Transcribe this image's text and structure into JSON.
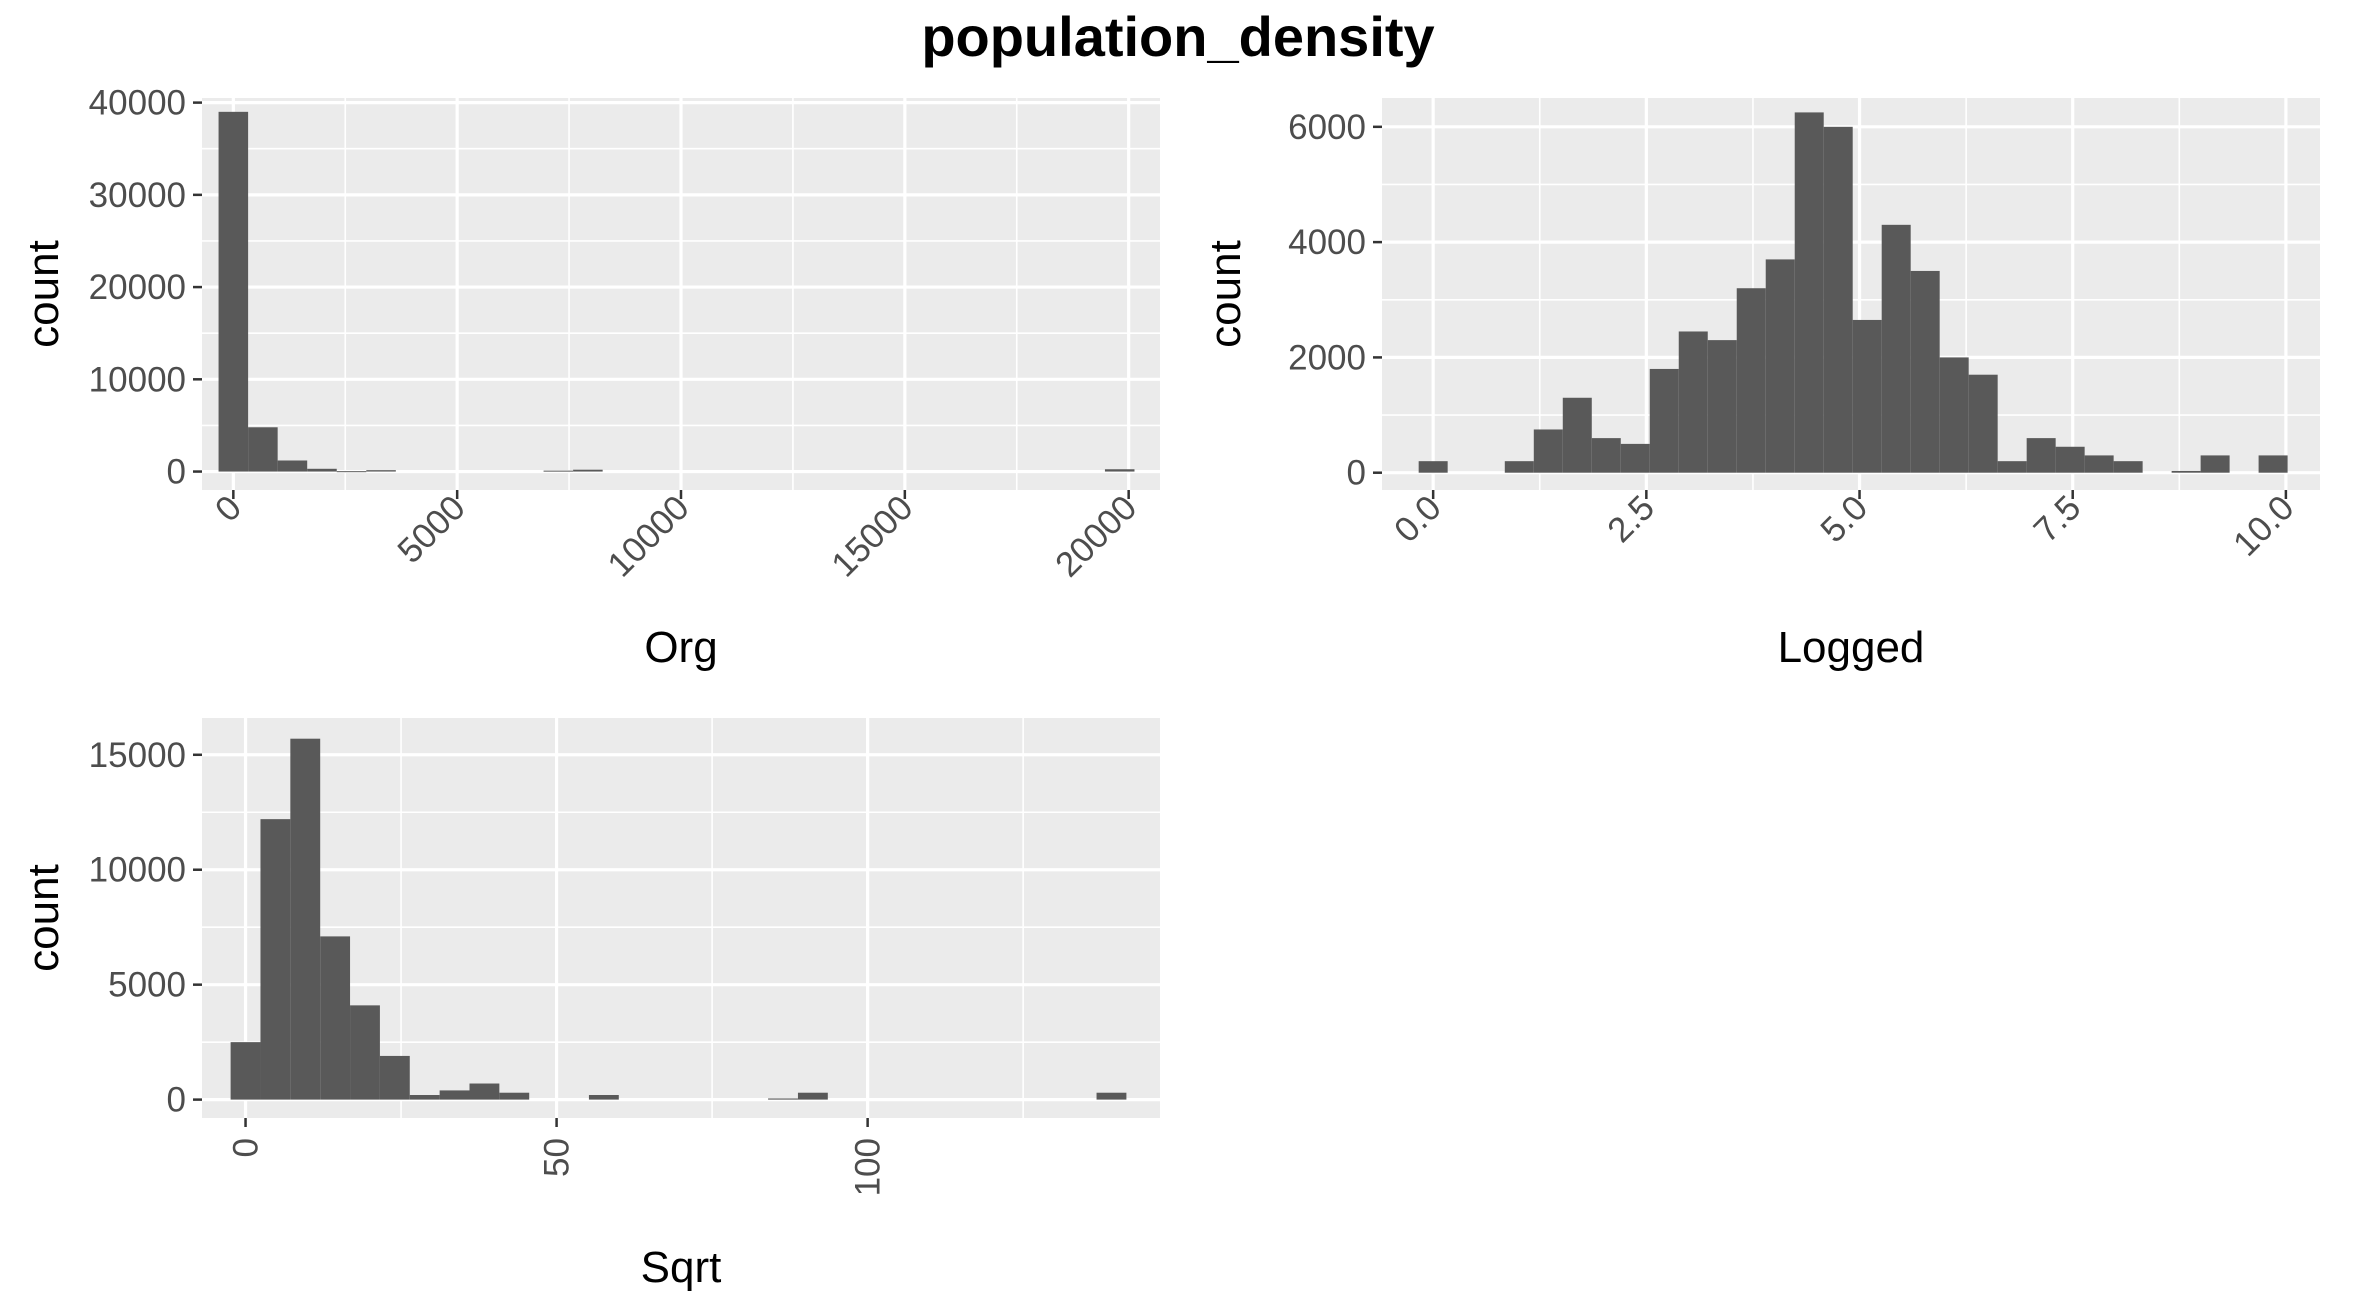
{
  "title": "population_density",
  "colors": {
    "panel_background": "#ebebeb",
    "grid_major": "#ffffff",
    "bar_fill": "#595959",
    "tick_text": "#4d4d4d",
    "tick_mark": "#333333"
  },
  "chart_data": [
    {
      "type": "bar",
      "kind": "histogram",
      "xlabel": "Org",
      "ylabel": "count",
      "xlim": [
        -700,
        20700
      ],
      "ylim": [
        -2000,
        40500
      ],
      "xticks": [
        0,
        5000,
        10000,
        15000,
        20000
      ],
      "xtick_labels": [
        "0",
        "5000",
        "10000",
        "15000",
        "20000"
      ],
      "yticks": [
        0,
        10000,
        20000,
        30000,
        40000
      ],
      "ytick_labels": [
        "0",
        "10000",
        "20000",
        "30000",
        "40000"
      ],
      "xtick_rotation": 45,
      "grid": true,
      "bars": [
        {
          "x0": -330,
          "x1": 330,
          "count": 39000
        },
        {
          "x0": 330,
          "x1": 990,
          "count": 4800
        },
        {
          "x0": 990,
          "x1": 1650,
          "count": 1200
        },
        {
          "x0": 1650,
          "x1": 2310,
          "count": 300
        },
        {
          "x0": 2310,
          "x1": 2970,
          "count": 40
        },
        {
          "x0": 2970,
          "x1": 3630,
          "count": 150
        },
        {
          "x0": 6930,
          "x1": 7590,
          "count": 100
        },
        {
          "x0": 7590,
          "x1": 8250,
          "count": 200
        },
        {
          "x0": 19470,
          "x1": 20130,
          "count": 250
        }
      ]
    },
    {
      "type": "bar",
      "kind": "histogram",
      "xlabel": "Logged",
      "ylabel": "count",
      "xlim": [
        -0.6,
        10.4
      ],
      "ylim": [
        -300,
        6500
      ],
      "xticks": [
        0,
        2.5,
        5,
        7.5,
        10
      ],
      "xtick_labels": [
        "0.0",
        "2.5",
        "5.0",
        "7.5",
        "10.0"
      ],
      "yticks": [
        0,
        2000,
        4000,
        6000
      ],
      "ytick_labels": [
        "0",
        "2000",
        "4000",
        "6000"
      ],
      "xtick_rotation": 45,
      "grid": true,
      "bars": [
        {
          "x0": -0.17,
          "x1": 0.17,
          "count": 200
        },
        {
          "x0": 0.84,
          "x1": 1.18,
          "count": 200
        },
        {
          "x0": 1.18,
          "x1": 1.52,
          "count": 750
        },
        {
          "x0": 1.52,
          "x1": 1.86,
          "count": 1300
        },
        {
          "x0": 1.86,
          "x1": 2.2,
          "count": 600
        },
        {
          "x0": 2.2,
          "x1": 2.54,
          "count": 500
        },
        {
          "x0": 2.54,
          "x1": 2.88,
          "count": 1800
        },
        {
          "x0": 2.88,
          "x1": 3.22,
          "count": 2450
        },
        {
          "x0": 3.22,
          "x1": 3.56,
          "count": 2300
        },
        {
          "x0": 3.56,
          "x1": 3.9,
          "count": 3200
        },
        {
          "x0": 3.9,
          "x1": 4.24,
          "count": 3700
        },
        {
          "x0": 4.24,
          "x1": 4.58,
          "count": 6250
        },
        {
          "x0": 4.58,
          "x1": 4.92,
          "count": 6000
        },
        {
          "x0": 4.92,
          "x1": 5.26,
          "count": 2650
        },
        {
          "x0": 5.26,
          "x1": 5.6,
          "count": 4300
        },
        {
          "x0": 5.6,
          "x1": 5.94,
          "count": 3500
        },
        {
          "x0": 5.94,
          "x1": 6.28,
          "count": 2000
        },
        {
          "x0": 6.28,
          "x1": 6.62,
          "count": 1700
        },
        {
          "x0": 6.62,
          "x1": 6.96,
          "count": 200
        },
        {
          "x0": 6.96,
          "x1": 7.3,
          "count": 600
        },
        {
          "x0": 7.3,
          "x1": 7.64,
          "count": 450
        },
        {
          "x0": 7.64,
          "x1": 7.98,
          "count": 300
        },
        {
          "x0": 7.98,
          "x1": 8.32,
          "count": 200
        },
        {
          "x0": 8.66,
          "x1": 9.0,
          "count": 30
        },
        {
          "x0": 9.0,
          "x1": 9.34,
          "count": 300
        },
        {
          "x0": 9.68,
          "x1": 10.02,
          "count": 300
        }
      ]
    },
    {
      "type": "bar",
      "kind": "histogram",
      "xlabel": "Sqrt",
      "ylabel": "count",
      "xlim": [
        -7,
        147
      ],
      "ylim": [
        -800,
        16600
      ],
      "xticks": [
        0,
        50,
        100
      ],
      "xtick_labels": [
        "0",
        "50",
        "100"
      ],
      "yticks": [
        0,
        5000,
        10000,
        15000
      ],
      "ytick_labels": [
        "0",
        "5000",
        "10000",
        "15000"
      ],
      "xtick_rotation": 90,
      "grid": true,
      "bars": [
        {
          "x0": -2.4,
          "x1": 2.4,
          "count": 2500
        },
        {
          "x0": 2.4,
          "x1": 7.2,
          "count": 12200
        },
        {
          "x0": 7.2,
          "x1": 12.0,
          "count": 15700
        },
        {
          "x0": 12.0,
          "x1": 16.8,
          "count": 7100
        },
        {
          "x0": 16.8,
          "x1": 21.6,
          "count": 4100
        },
        {
          "x0": 21.6,
          "x1": 26.4,
          "count": 1900
        },
        {
          "x0": 26.4,
          "x1": 31.2,
          "count": 200
        },
        {
          "x0": 31.2,
          "x1": 36.0,
          "count": 400
        },
        {
          "x0": 36.0,
          "x1": 40.8,
          "count": 700
        },
        {
          "x0": 40.8,
          "x1": 45.6,
          "count": 300
        },
        {
          "x0": 55.2,
          "x1": 60.0,
          "count": 200
        },
        {
          "x0": 84.0,
          "x1": 88.8,
          "count": 50
        },
        {
          "x0": 88.8,
          "x1": 93.6,
          "count": 300
        },
        {
          "x0": 136.8,
          "x1": 141.6,
          "count": 300
        }
      ]
    }
  ]
}
